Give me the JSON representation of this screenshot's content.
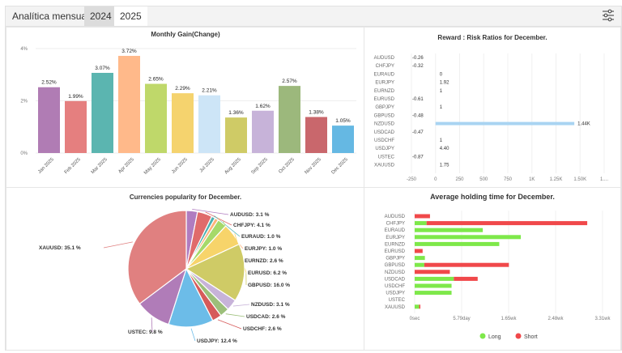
{
  "header": {
    "title": "Analítica mensual",
    "tabs": [
      "2024",
      "2025"
    ],
    "active_tab": "2025",
    "settings_icon": "sliders-icon"
  },
  "chart_data": [
    {
      "type": "bar",
      "title": "Monthly Gain(Change)",
      "categories": [
        "Jan 2025",
        "Feb 2025",
        "Mar 2025",
        "Apr 2025",
        "May 2025",
        "Jun 2025",
        "Jul 2025",
        "Aug 2025",
        "Sep 2025",
        "Oct 2025",
        "Nov 2025",
        "Dec 2025"
      ],
      "values": [
        2.52,
        1.99,
        3.07,
        3.72,
        2.65,
        2.29,
        2.21,
        1.36,
        1.62,
        2.57,
        1.38,
        1.05
      ],
      "labels": [
        "2.52%",
        "1.99%",
        "3.07%",
        "3.72%",
        "2.65%",
        "2.29%",
        "2.21%",
        "1.36%",
        "1.62%",
        "2.57%",
        "1.38%",
        "1.05%"
      ],
      "colors": [
        "#b07cb4",
        "#e57f7f",
        "#5bb5b0",
        "#ffb98a",
        "#bfd86a",
        "#f5d36e",
        "#cde5f7",
        "#cfcb66",
        "#c7b3d9",
        "#9cb87c",
        "#c9676c",
        "#65b8e3"
      ],
      "yticks": [
        "0%",
        "2%",
        "4%"
      ],
      "ylim": [
        0,
        4
      ],
      "grid": true
    },
    {
      "type": "bar",
      "orientation": "horizontal",
      "title": "Reward : Risk Ratios for December.",
      "categories": [
        "AUDUSD",
        "CHFJPY",
        "EURAUD",
        "EURJPY",
        "EURNZD",
        "EURUSD",
        "GBPJPY",
        "GBPUSD",
        "NZDUSD",
        "USDCAD",
        "USDCHF",
        "USDJPY",
        "USTEC",
        "XAUUSD"
      ],
      "values": [
        -0.26,
        -0.32,
        0,
        1.92,
        1,
        -0.61,
        1,
        -0.48,
        1440,
        -0.47,
        1,
        4.4,
        -0.87,
        1.75
      ],
      "labels": [
        "-0.26",
        "-0.32",
        "0",
        "1.92",
        "1",
        "-0.61",
        "1",
        "-0.48",
        "1.44K",
        "-0.47",
        "1",
        "4.40",
        "-0.87",
        "1.75"
      ],
      "xticks": [
        "-250",
        "0",
        "250",
        "500",
        "750",
        "1K",
        "1.25K",
        "1.50K",
        "1...."
      ],
      "xlim": [
        -250,
        1750
      ],
      "color": "#a9d4f2",
      "grid": true
    },
    {
      "type": "pie",
      "title": "Currencies popularity for December.",
      "categories": [
        "AUDUSD",
        "CHFJPY",
        "EURAUD",
        "EURJPY",
        "EURNZD",
        "EURUSD",
        "GBPUSD",
        "NZDUSD",
        "USDCAD",
        "USDCHF",
        "USDJPY",
        "USTEC",
        "XAUUSD"
      ],
      "values": [
        3.1,
        4.1,
        1.0,
        1.0,
        2.6,
        6.2,
        16.0,
        3.1,
        2.6,
        2.6,
        12.4,
        9.8,
        35.1
      ],
      "labels": [
        "AUDUSD: 3.1 %",
        "CHFJPY: 4.1 %",
        "EURAUD: 1.0 %",
        "EURJPY: 1.0 %",
        "EURNZD: 2.6 %",
        "EURUSD: 6.2 %",
        "GBPUSD: 16.0 %",
        "NZDUSD: 3.1 %",
        "USDCAD: 2.6 %",
        "USDCHF: 2.6 %",
        "USDJPY: 12.4 %",
        "USTEC: 9.8 %",
        "XAUUSD: 35.1 %"
      ],
      "colors": [
        "#b07cc0",
        "#e06b6b",
        "#4bb0b0",
        "#ffb27a",
        "#a6d96a",
        "#f7d46a",
        "#cfcb66",
        "#c7b3d9",
        "#9cbf7a",
        "#d65a5a",
        "#6cbce8",
        "#b07cb8",
        "#e08080"
      ]
    },
    {
      "type": "bar",
      "orientation": "horizontal",
      "stacked": true,
      "title": "Average holding time for December.",
      "categories": [
        "AUDUSD",
        "CHFJPY",
        "EURAUD",
        "EURJPY",
        "EURNZD",
        "EURUSD",
        "GBPJPY",
        "GBPUSD",
        "NZDUSD",
        "USDCAD",
        "USDCHF",
        "USDJPY",
        "USTEC",
        "XAUUSD"
      ],
      "unit": "weeks",
      "series": [
        {
          "name": "Long",
          "color": "#7ee84a",
          "values": [
            0,
            0.21,
            1.2,
            1.87,
            1.49,
            0,
            0.18,
            0.17,
            0,
            0.69,
            0.65,
            0.65,
            0,
            0.08
          ]
        },
        {
          "name": "Short",
          "color": "#f0484a",
          "values": [
            0.27,
            2.83,
            0,
            0,
            0,
            0.14,
            0,
            1.49,
            0.62,
            0.42,
            0,
            0,
            0,
            0.02
          ]
        }
      ],
      "xticks": [
        "0sec",
        "5.79day",
        "1.65wk",
        "2.48wk",
        "3.31wk"
      ],
      "xlim": [
        0,
        3.31
      ],
      "grid": true,
      "legend": "bottom"
    }
  ]
}
